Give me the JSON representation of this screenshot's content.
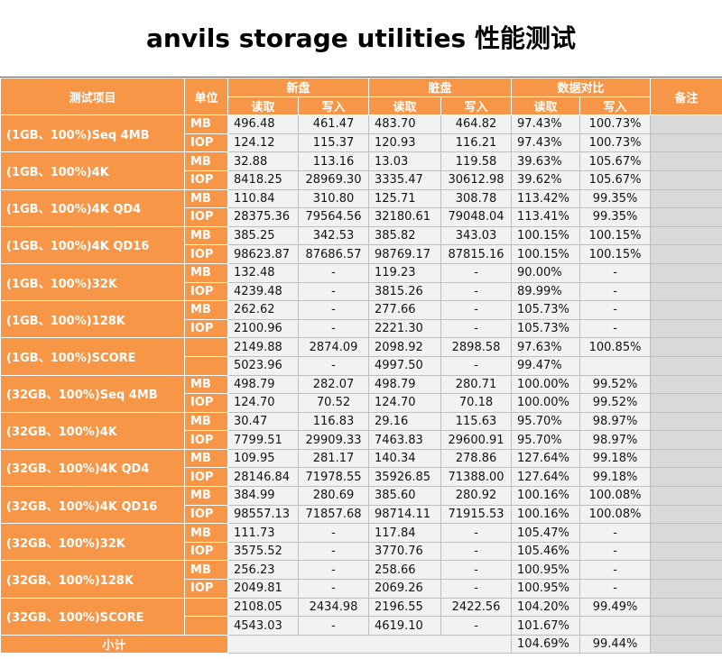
{
  "title": "anvils storage utilities 性能测试",
  "headers": {
    "item": "测试项目",
    "unit": "单位",
    "new_disk": "新盘",
    "dirty_disk": "脏盘",
    "compare": "数据对比",
    "note": "备注",
    "read": "读取",
    "write": "写入"
  },
  "groups": [
    {
      "label": "(1GB、100%)Seq 4MB",
      "rows": [
        {
          "unit": "MB",
          "nr": "496.48",
          "nw": "461.47",
          "dr": "483.70",
          "dw": "464.82",
          "cr": "97.43%",
          "cw": "100.73%"
        },
        {
          "unit": "IOP",
          "nr": "124.12",
          "nw": "115.37",
          "dr": "120.93",
          "dw": "116.21",
          "cr": "97.43%",
          "cw": "100.73%"
        }
      ]
    },
    {
      "label": "(1GB、100%)4K",
      "rows": [
        {
          "unit": "MB",
          "nr": "32.88",
          "nw": "113.16",
          "dr": "13.03",
          "dw": "119.58",
          "cr": "39.63%",
          "cw": "105.67%"
        },
        {
          "unit": "IOP",
          "nr": "8418.25",
          "nw": "28969.30",
          "dr": "3335.47",
          "dw": "30612.98",
          "cr": "39.62%",
          "cw": "105.67%"
        }
      ]
    },
    {
      "label": "(1GB、100%)4K QD4",
      "rows": [
        {
          "unit": "MB",
          "nr": "110.84",
          "nw": "310.80",
          "dr": "125.71",
          "dw": "308.78",
          "cr": "113.42%",
          "cw": "99.35%"
        },
        {
          "unit": "IOP",
          "nr": "28375.36",
          "nw": "79564.56",
          "dr": "32180.61",
          "dw": "79048.04",
          "cr": "113.41%",
          "cw": "99.35%"
        }
      ]
    },
    {
      "label": "(1GB、100%)4K QD16",
      "rows": [
        {
          "unit": "MB",
          "nr": "385.25",
          "nw": "342.53",
          "dr": "385.82",
          "dw": "343.03",
          "cr": "100.15%",
          "cw": "100.15%"
        },
        {
          "unit": "IOP",
          "nr": "98623.87",
          "nw": "87686.57",
          "dr": "98769.17",
          "dw": "87815.16",
          "cr": "100.15%",
          "cw": "100.15%"
        }
      ]
    },
    {
      "label": "(1GB、100%)32K",
      "rows": [
        {
          "unit": "MB",
          "nr": "132.48",
          "nw": "-",
          "dr": "119.23",
          "dw": "-",
          "cr": "90.00%",
          "cw": "-"
        },
        {
          "unit": "IOP",
          "nr": "4239.48",
          "nw": "-",
          "dr": "3815.26",
          "dw": "-",
          "cr": "89.99%",
          "cw": "-"
        }
      ]
    },
    {
      "label": "(1GB、100%)128K",
      "rows": [
        {
          "unit": "MB",
          "nr": "262.62",
          "nw": "-",
          "dr": "277.66",
          "dw": "-",
          "cr": "105.73%",
          "cw": "-"
        },
        {
          "unit": "IOP",
          "nr": "2100.96",
          "nw": "-",
          "dr": "2221.30",
          "dw": "-",
          "cr": "105.73%",
          "cw": "-"
        }
      ]
    },
    {
      "label": "(1GB、100%)SCORE",
      "rows": [
        {
          "unit": "",
          "nr": "2149.88",
          "nw": "2874.09",
          "dr": "2098.92",
          "dw": "2898.58",
          "cr": "97.63%",
          "cw": "100.85%"
        },
        {
          "unit": "",
          "nr": "5023.96",
          "nw": "-",
          "dr": "4997.50",
          "dw": "-",
          "cr": "99.47%",
          "cw": ""
        }
      ]
    },
    {
      "label": "(32GB、100%)Seq 4MB",
      "rows": [
        {
          "unit": "MB",
          "nr": "498.79",
          "nw": "282.07",
          "dr": "498.79",
          "dw": "280.71",
          "cr": "100.00%",
          "cw": "99.52%"
        },
        {
          "unit": "IOP",
          "nr": "124.70",
          "nw": "70.52",
          "dr": "124.70",
          "dw": "70.18",
          "cr": "100.00%",
          "cw": "99.52%"
        }
      ]
    },
    {
      "label": "(32GB、100%)4K",
      "rows": [
        {
          "unit": "MB",
          "nr": "30.47",
          "nw": "116.83",
          "dr": "29.16",
          "dw": "115.63",
          "cr": "95.70%",
          "cw": "98.97%"
        },
        {
          "unit": "IOP",
          "nr": "7799.51",
          "nw": "29909.33",
          "dr": "7463.83",
          "dw": "29600.91",
          "cr": "95.70%",
          "cw": "98.97%"
        }
      ]
    },
    {
      "label": "(32GB、100%)4K QD4",
      "rows": [
        {
          "unit": "MB",
          "nr": "109.95",
          "nw": "281.17",
          "dr": "140.34",
          "dw": "278.86",
          "cr": "127.64%",
          "cw": "99.18%"
        },
        {
          "unit": "IOP",
          "nr": "28146.84",
          "nw": "71978.55",
          "dr": "35926.85",
          "dw": "71388.00",
          "cr": "127.64%",
          "cw": "99.18%"
        }
      ]
    },
    {
      "label": "(32GB、100%)4K QD16",
      "rows": [
        {
          "unit": "MB",
          "nr": "384.99",
          "nw": "280.69",
          "dr": "385.60",
          "dw": "280.92",
          "cr": "100.16%",
          "cw": "100.08%"
        },
        {
          "unit": "IOP",
          "nr": "98557.13",
          "nw": "71857.68",
          "dr": "98714.11",
          "dw": "71915.53",
          "cr": "100.16%",
          "cw": "100.08%"
        }
      ]
    },
    {
      "label": "(32GB、100%)32K",
      "rows": [
        {
          "unit": "MB",
          "nr": "111.73",
          "nw": "-",
          "dr": "117.84",
          "dw": "-",
          "cr": "105.47%",
          "cw": "-"
        },
        {
          "unit": "IOP",
          "nr": "3575.52",
          "nw": "-",
          "dr": "3770.76",
          "dw": "-",
          "cr": "105.46%",
          "cw": "-"
        }
      ]
    },
    {
      "label": "(32GB、100%)128K",
      "rows": [
        {
          "unit": "MB",
          "nr": "256.23",
          "nw": "-",
          "dr": "258.66",
          "dw": "-",
          "cr": "100.95%",
          "cw": "-"
        },
        {
          "unit": "IOP",
          "nr": "2049.81",
          "nw": "-",
          "dr": "2069.26",
          "dw": "-",
          "cr": "100.95%",
          "cw": "-"
        }
      ]
    },
    {
      "label": "(32GB、100%)SCORE",
      "rows": [
        {
          "unit": "",
          "nr": "2108.05",
          "nw": "2434.98",
          "dr": "2196.55",
          "dw": "2422.56",
          "cr": "104.20%",
          "cw": "99.49%"
        },
        {
          "unit": "",
          "nr": "4543.03",
          "nw": "-",
          "dr": "4619.10",
          "dw": "-",
          "cr": "101.67%",
          "cw": ""
        }
      ]
    }
  ],
  "subtotal": {
    "label": "小计",
    "read": "104.69%",
    "write": "99.44%"
  }
}
